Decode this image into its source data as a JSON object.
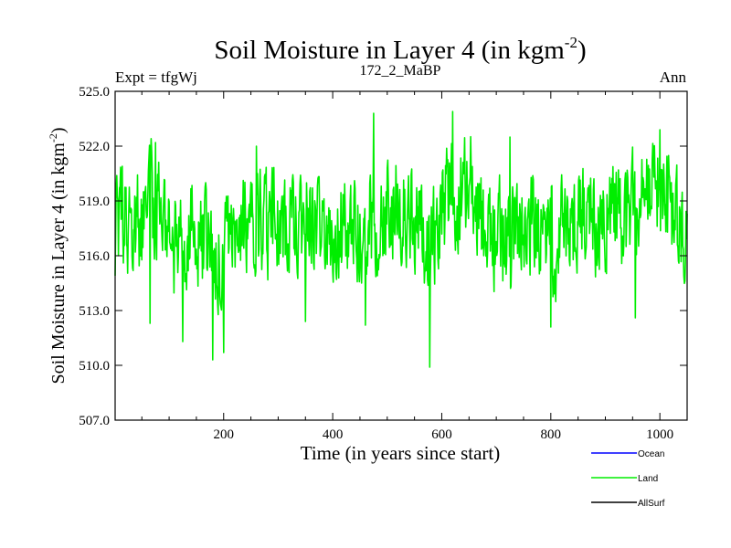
{
  "chart_data": {
    "type": "line",
    "title": "Soil Moisture in Layer 4 (in kgm",
    "title_superscript": "-2",
    "title_close": ")",
    "subtitle_left": "Expt = tfgWj",
    "subtitle_center": "172_2_MaBP",
    "subtitle_right": "Ann",
    "xlabel": "Time (in years since start)",
    "ylabel": "Soil Moisture in Layer 4 (in kgm",
    "ylabel_superscript": "-2",
    "ylabel_close": ")",
    "xlim": [
      1,
      1050
    ],
    "ylim": [
      507.0,
      525.0
    ],
    "xticks": [
      200,
      400,
      600,
      800,
      1000
    ],
    "xtick_labels": [
      "200",
      "400",
      "600",
      "800",
      "1000"
    ],
    "yticks": [
      507.0,
      510.0,
      513.0,
      516.0,
      519.0,
      522.0,
      525.0
    ],
    "ytick_labels": [
      "507.0",
      "510.0",
      "513.0",
      "516.0",
      "519.0",
      "522.0",
      "525.0"
    ],
    "grid": false,
    "legend_position": "bottom-right",
    "legend": [
      {
        "name": "Ocean",
        "color": "#0000ff"
      },
      {
        "name": "Land",
        "color": "#00ee00"
      },
      {
        "name": "AllSurf",
        "color": "#000000"
      }
    ],
    "series": [
      {
        "name": "Land",
        "color": "#00ee00",
        "x": [
          1,
          25,
          50,
          65,
          75,
          100,
          125,
          150,
          175,
          180,
          200,
          225,
          250,
          260,
          275,
          300,
          325,
          350,
          375,
          400,
          425,
          450,
          475,
          500,
          525,
          550,
          575,
          580,
          600,
          620,
          650,
          675,
          700,
          725,
          750,
          775,
          800,
          825,
          850,
          875,
          900,
          925,
          950,
          955,
          975,
          1000,
          1025,
          1050
        ],
        "y": [
          517.5,
          518.0,
          517.5,
          519.5,
          518.5,
          517.0,
          516.5,
          517.5,
          516.0,
          515.5,
          517.0,
          517.5,
          518.0,
          518.5,
          517.5,
          517.5,
          517.5,
          518.0,
          517.5,
          517.5,
          517.5,
          517.5,
          518.0,
          518.5,
          518.5,
          518.0,
          516.5,
          516.5,
          518.5,
          519.5,
          520.0,
          518.0,
          517.0,
          517.0,
          517.5,
          517.5,
          516.5,
          517.5,
          518.0,
          518.0,
          518.0,
          518.0,
          518.5,
          518.5,
          518.5,
          519.5,
          518.5,
          517.5
        ],
        "peaks": [
          [
            75,
            522.2
          ],
          [
            260,
            522.0
          ],
          [
            475,
            523.8
          ],
          [
            620,
            523.9
          ],
          [
            725,
            522.5
          ],
          [
            1000,
            522.9
          ]
        ],
        "troughs": [
          [
            65,
            512.3
          ],
          [
            125,
            511.3
          ],
          [
            180,
            510.3
          ],
          [
            200,
            510.7
          ],
          [
            350,
            512.4
          ],
          [
            460,
            512.2
          ],
          [
            578,
            509.9
          ],
          [
            800,
            512.1
          ],
          [
            955,
            512.6
          ]
        ]
      }
    ]
  }
}
